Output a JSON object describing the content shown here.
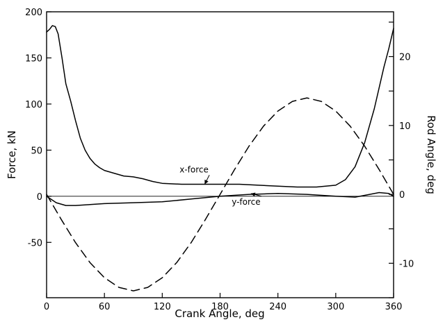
{
  "chart_data": {
    "type": "line",
    "xlabel": "Crank Angle, deg",
    "ylabel_left": "Force, kN",
    "ylabel_right": "Rod Angle, deg",
    "xlim": [
      0,
      360
    ],
    "ylim_left": [
      -110,
      200
    ],
    "ylim_right": [
      -15.0,
      26.5
    ],
    "x_ticks": [
      0,
      60,
      120,
      180,
      240,
      300,
      360
    ],
    "x_tick_labels": [
      "0",
      "60",
      "120",
      "180",
      "240",
      "300",
      "360"
    ],
    "y_ticks_left": [
      -50,
      0,
      50,
      100,
      150,
      200
    ],
    "y_tick_labels_left": [
      "-50",
      "0",
      "50",
      "100",
      "150",
      "200"
    ],
    "y_ticks_right": [
      -10,
      0,
      10,
      20
    ],
    "y_tick_labels_right": [
      "-10",
      "0",
      "10",
      "20"
    ],
    "grid": false,
    "series": [
      {
        "name": "x-force",
        "axis": "left",
        "style": "solid",
        "color": "#000000",
        "x": [
          0,
          3,
          6,
          9,
          12,
          16,
          20,
          25,
          30,
          35,
          40,
          45,
          50,
          55,
          60,
          70,
          80,
          90,
          100,
          110,
          120,
          140,
          160,
          180,
          200,
          220,
          240,
          260,
          280,
          300,
          310,
          320,
          330,
          340,
          350,
          355,
          360
        ],
        "y": [
          178,
          181,
          185,
          184,
          176,
          150,
          122,
          103,
          82,
          63,
          50,
          41,
          35,
          31,
          28,
          25,
          22,
          21,
          19,
          16,
          14,
          13,
          13,
          13,
          13,
          12,
          11,
          10,
          10,
          12,
          18,
          32,
          58,
          95,
          140,
          160,
          182
        ]
      },
      {
        "name": "y-force",
        "axis": "left",
        "style": "solid",
        "color": "#000000",
        "x": [
          0,
          10,
          20,
          30,
          45,
          60,
          90,
          120,
          150,
          180,
          210,
          240,
          270,
          300,
          320,
          330,
          345,
          355,
          360
        ],
        "y": [
          0,
          -7,
          -10,
          -10,
          -9,
          -8,
          -7,
          -6,
          -3,
          0,
          2,
          3,
          2,
          0,
          -1,
          1,
          4,
          3,
          0
        ]
      },
      {
        "name": "rod angle",
        "axis": "right",
        "style": "dashed",
        "color": "#000000",
        "x": [
          0,
          15,
          30,
          45,
          60,
          75,
          90,
          105,
          120,
          135,
          150,
          165,
          180,
          195,
          210,
          225,
          240,
          255,
          270,
          285,
          300,
          315,
          330,
          345,
          360
        ],
        "y": [
          0,
          -3.6,
          -7.0,
          -9.9,
          -12.1,
          -13.5,
          -14.0,
          -13.5,
          -12.1,
          -9.9,
          -7.0,
          -3.6,
          0,
          3.6,
          7.0,
          9.9,
          12.1,
          13.5,
          14.0,
          13.5,
          12.1,
          9.9,
          7.0,
          3.6,
          0
        ]
      }
    ],
    "annotations": [
      {
        "text": "x-force",
        "x": 153,
        "y": 26,
        "arrow_to": [
          164,
          13
        ]
      },
      {
        "text": "y-force",
        "x": 207,
        "y": -9,
        "arrow_to": [
          212,
          3
        ]
      }
    ]
  }
}
